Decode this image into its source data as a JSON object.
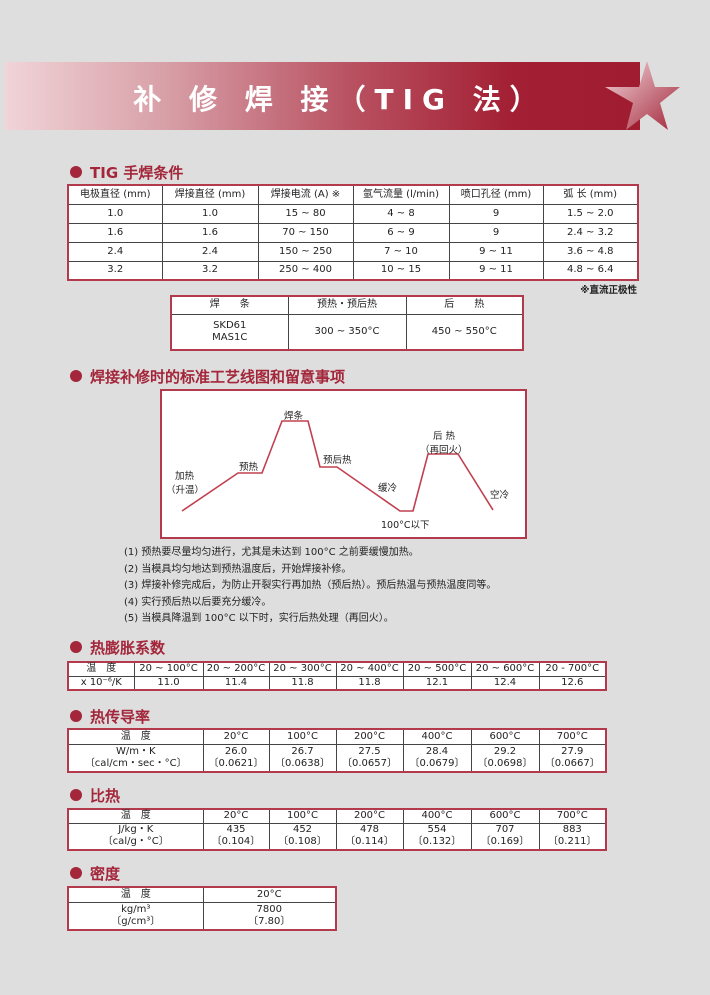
{
  "title": "补 修 焊 接（TIG 法）",
  "colors": {
    "accent": "#a3263a",
    "border": "#b23a4c",
    "background": "#dedede"
  },
  "tig": {
    "heading": "TIG 手焊条件",
    "table1": [
      [
        "电极直径 (mm)",
        "焊接直径 (mm)",
        "焊接电流 (A) ※",
        "氩气流量 (l/min)",
        "喷口孔径 (mm)",
        "弧 长 (mm)"
      ],
      [
        "1.0",
        "1.0",
        "15 ~ 80",
        "4 ~ 8",
        "9",
        "1.5 ~ 2.0"
      ],
      [
        "1.6",
        "1.6",
        "70 ~ 150",
        "6 ~ 9",
        "9",
        "2.4 ~ 3.2"
      ],
      [
        "2.4",
        "2.4",
        "150 ~ 250",
        "7 ~ 10",
        "9 ~ 11",
        "3.6 ~ 4.8"
      ],
      [
        "3.2",
        "3.2",
        "250 ~ 400",
        "10 ~ 15",
        "9 ~ 11",
        "4.8 ~ 6.4"
      ]
    ],
    "note": "※直流正极性",
    "table2": [
      [
        "焊　　条",
        "预热・预后热",
        "后　　热"
      ],
      [
        "SKD61\nMAS1C",
        "300 ~ 350°C",
        "450 ~ 550°C"
      ]
    ]
  },
  "process": {
    "heading": "焊接补修时的标准工艺线图和留意事项",
    "labels": {
      "heating": "加热",
      "heating_sub": "（升温）",
      "preheat": "预热",
      "welding": "焊条",
      "pre_postheat": "预后热",
      "slow_cool": "缓冷",
      "below": "100°C以下",
      "postheat": "后 热",
      "postheat_sub": "（再回火）",
      "air_cool": "空冷"
    },
    "notes": [
      "(1)  预热要尽量均匀进行，尤其是未达到 100°C 之前要缓慢加热。",
      "(2)  当模具均匀地达到预热温度后，开始焊接补修。",
      "(3)  焊接补修完成后，为防止开裂实行再加热（预后热）。预后热温与预热温度同等。",
      "(4)  实行预后热以后要充分缓冷。",
      "(5)  当模具降温到 100°C 以下时，实行后热处理（再回火）。"
    ]
  },
  "expansion": {
    "heading": "热膨胀系数",
    "table": [
      [
        "温　度",
        "20 ~ 100°C",
        "20 ~ 200°C",
        "20 ~ 300°C",
        "20 ~ 400°C",
        "20 ~ 500°C",
        "20 ~ 600°C",
        "20 - 700°C"
      ],
      [
        "x 10⁻⁶/K",
        "11.0",
        "11.4",
        "11.8",
        "11.8",
        "12.1",
        "12.4",
        "12.6"
      ]
    ]
  },
  "conductivity": {
    "heading": "热传导率",
    "table": [
      [
        "温　度",
        "20°C",
        "100°C",
        "200°C",
        "400°C",
        "600°C",
        "700°C"
      ],
      [
        "W/m・K\n〔cal/cm・sec・°C〕",
        "26.0\n〔0.0621〕",
        "26.7\n〔0.0638〕",
        "27.5\n〔0.0657〕",
        "28.4\n〔0.0679〕",
        "29.2\n〔0.0698〕",
        "27.9\n〔0.0667〕"
      ]
    ]
  },
  "specific_heat": {
    "heading": "比热",
    "table": [
      [
        "温　度",
        "20°C",
        "100°C",
        "200°C",
        "400°C",
        "600°C",
        "700°C"
      ],
      [
        "J/kg・K\n〔cal/g・°C〕",
        "435\n〔0.104〕",
        "452\n〔0.108〕",
        "478\n〔0.114〕",
        "554\n〔0.132〕",
        "707\n〔0.169〕",
        "883\n〔0.211〕"
      ]
    ]
  },
  "density": {
    "heading": "密度",
    "table": [
      [
        "温　度",
        "20°C"
      ],
      [
        "kg/m³\n〔g/cm³〕",
        "7800\n〔7.80〕"
      ]
    ]
  }
}
